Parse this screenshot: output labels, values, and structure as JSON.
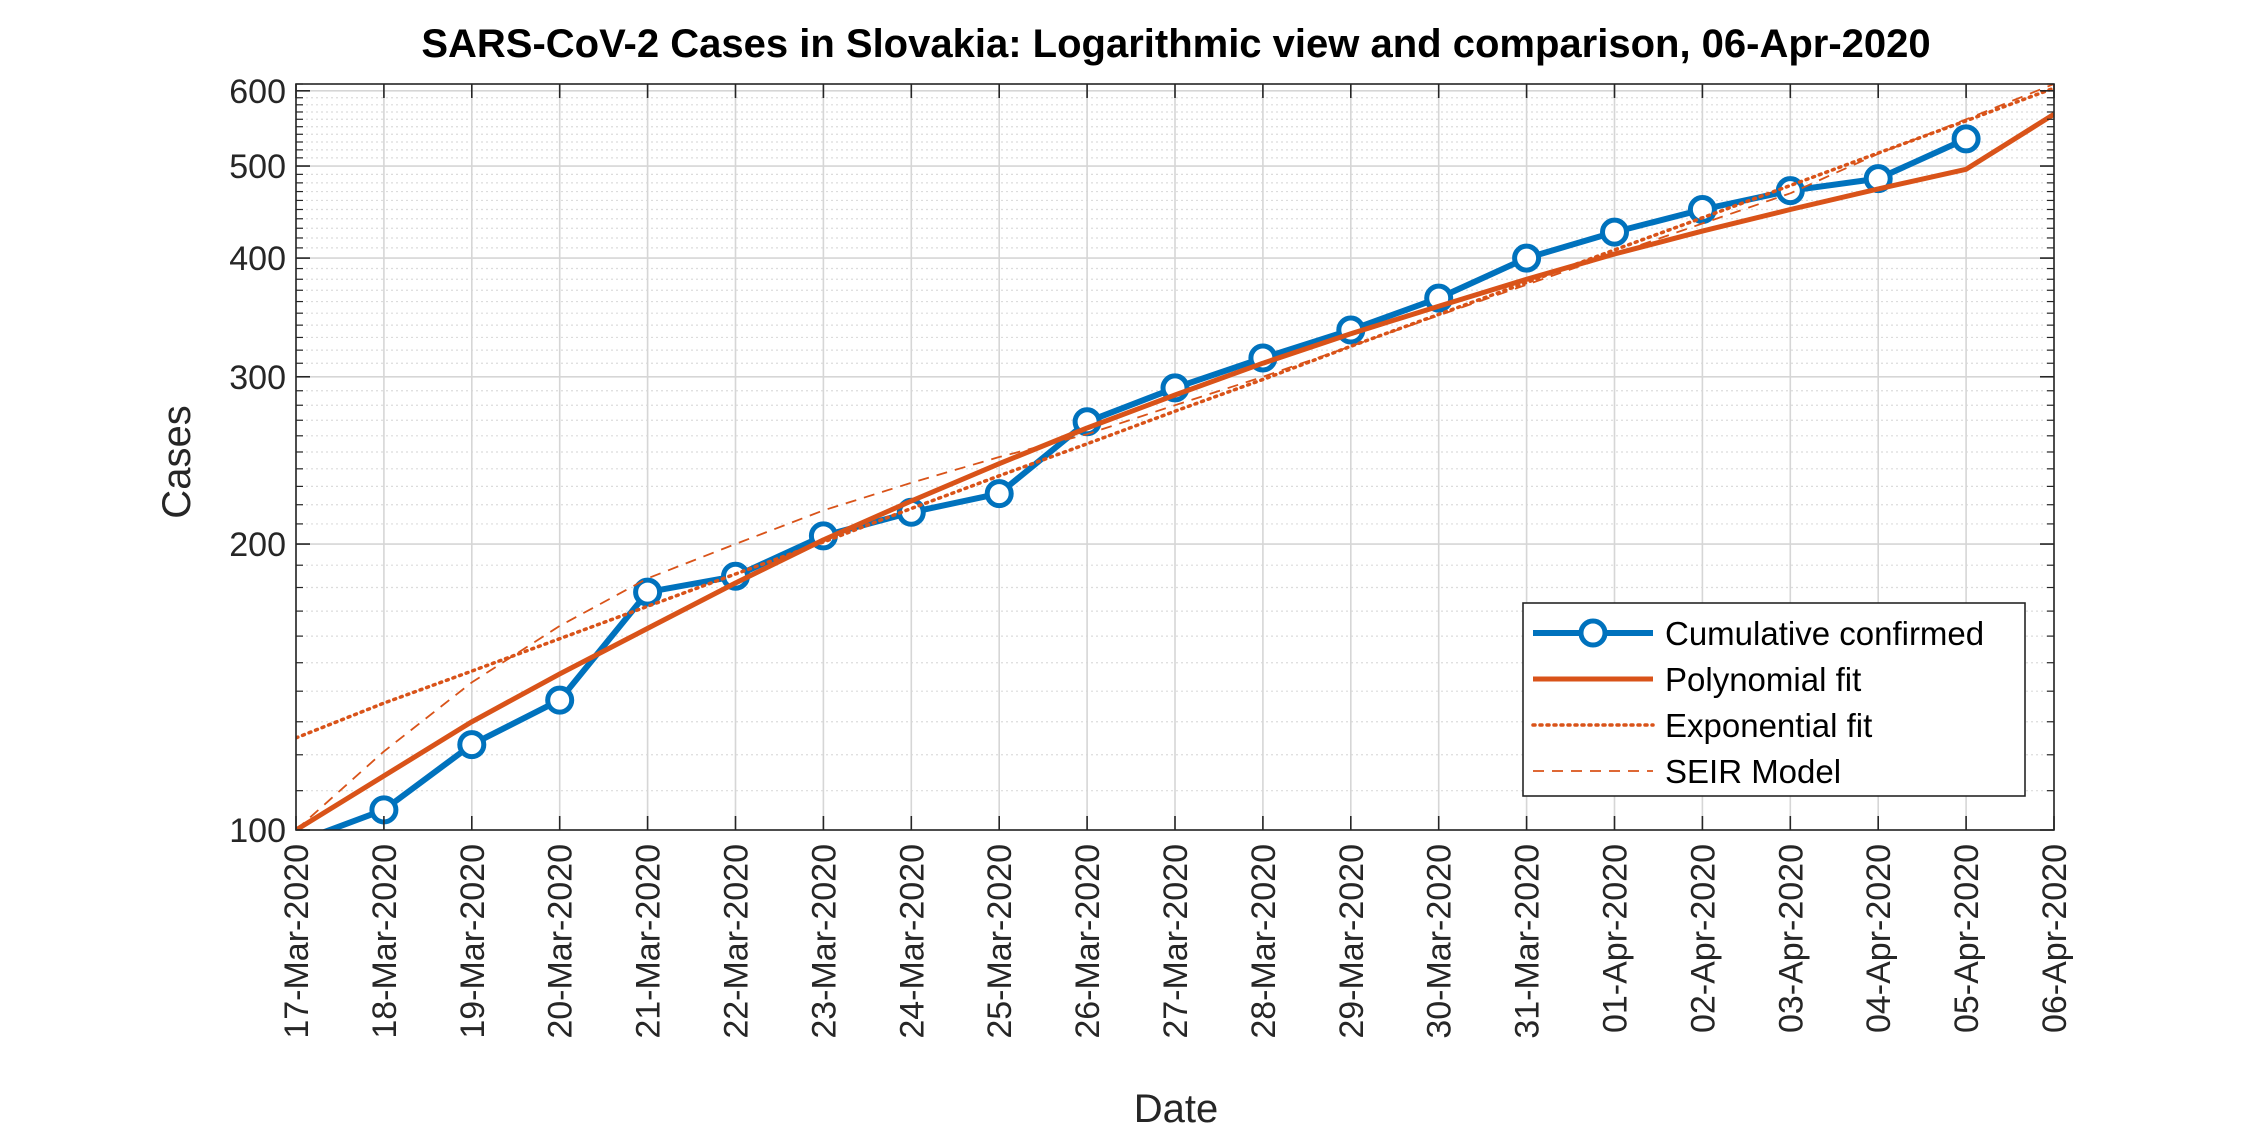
{
  "chart_data": {
    "type": "line",
    "title": "SARS-CoV-2 Cases in Slovakia: Logarithmic view and comparison, 06-Apr-2020",
    "xlabel": "Date",
    "ylabel": "Cases",
    "yscale": "log",
    "ylim": [
      100,
      610
    ],
    "yticks": [
      100,
      200,
      300,
      400,
      500,
      600
    ],
    "grid": true,
    "minor_grid": true,
    "legend_placement": "lower-right",
    "x_tick_labels": [
      "17-Mar-2020",
      "18-Mar-2020",
      "19-Mar-2020",
      "20-Mar-2020",
      "21-Mar-2020",
      "22-Mar-2020",
      "23-Mar-2020",
      "24-Mar-2020",
      "25-Mar-2020",
      "26-Mar-2020",
      "27-Mar-2020",
      "28-Mar-2020",
      "29-Mar-2020",
      "30-Mar-2020",
      "31-Mar-2020",
      "01-Apr-2020",
      "02-Apr-2020",
      "03-Apr-2020",
      "04-Apr-2020",
      "05-Apr-2020",
      "06-Apr-2020"
    ],
    "series": [
      {
        "name": "Cumulative confirmed",
        "style": "solid-marker",
        "color": "#0072BD",
        "x": [
          "17-Mar-2020",
          "18-Mar-2020",
          "19-Mar-2020",
          "20-Mar-2020",
          "21-Mar-2020",
          "22-Mar-2020",
          "23-Mar-2020",
          "24-Mar-2020",
          "25-Mar-2020",
          "26-Mar-2020",
          "27-Mar-2020",
          "28-Mar-2020",
          "29-Mar-2020",
          "30-Mar-2020",
          "31-Mar-2020",
          "01-Apr-2020",
          "02-Apr-2020",
          "03-Apr-2020",
          "04-Apr-2020",
          "05-Apr-2020"
        ],
        "values": [
          97,
          105,
          123,
          137,
          178,
          185,
          204,
          216,
          226,
          269,
          292,
          314,
          336,
          363,
          400,
          426,
          450,
          471,
          485,
          534
        ]
      },
      {
        "name": "Polynomial fit",
        "style": "solid",
        "color": "#D95319",
        "x": [
          "17-Mar-2020",
          "18-Mar-2020",
          "19-Mar-2020",
          "20-Mar-2020",
          "21-Mar-2020",
          "22-Mar-2020",
          "23-Mar-2020",
          "24-Mar-2020",
          "25-Mar-2020",
          "26-Mar-2020",
          "27-Mar-2020",
          "28-Mar-2020",
          "29-Mar-2020",
          "30-Mar-2020",
          "31-Mar-2020",
          "01-Apr-2020",
          "02-Apr-2020",
          "03-Apr-2020",
          "04-Apr-2020",
          "05-Apr-2020",
          "06-Apr-2020"
        ],
        "values": [
          100,
          114,
          130,
          146,
          163,
          182,
          202,
          222,
          243,
          265,
          287,
          310,
          333,
          356,
          380,
          404,
          427,
          450,
          473,
          496,
          567
        ]
      },
      {
        "name": "Exponential fit",
        "style": "dotted",
        "color": "#D95319",
        "x": [
          "17-Mar-2020",
          "18-Mar-2020",
          "19-Mar-2020",
          "20-Mar-2020",
          "21-Mar-2020",
          "22-Mar-2020",
          "23-Mar-2020",
          "24-Mar-2020",
          "25-Mar-2020",
          "26-Mar-2020",
          "27-Mar-2020",
          "28-Mar-2020",
          "29-Mar-2020",
          "30-Mar-2020",
          "31-Mar-2020",
          "01-Apr-2020",
          "02-Apr-2020",
          "03-Apr-2020",
          "04-Apr-2020",
          "05-Apr-2020",
          "06-Apr-2020"
        ],
        "values": [
          125,
          136,
          147,
          159,
          172,
          186,
          201,
          218,
          236,
          255,
          276,
          298,
          323,
          349,
          377,
          408,
          441,
          477,
          516,
          558,
          604
        ]
      },
      {
        "name": "SEIR Model",
        "style": "dashed",
        "color": "#D95319",
        "x": [
          "17-Mar-2020",
          "18-Mar-2020",
          "19-Mar-2020",
          "20-Mar-2020",
          "21-Mar-2020",
          "22-Mar-2020",
          "23-Mar-2020",
          "24-Mar-2020",
          "25-Mar-2020",
          "26-Mar-2020",
          "27-Mar-2020",
          "28-Mar-2020",
          "29-Mar-2020",
          "30-Mar-2020",
          "31-Mar-2020",
          "01-Apr-2020",
          "02-Apr-2020",
          "03-Apr-2020",
          "04-Apr-2020",
          "05-Apr-2020",
          "06-Apr-2020"
        ],
        "values": [
          100,
          121,
          143,
          164,
          184,
          200,
          217,
          232,
          247,
          261,
          280,
          300,
          323,
          348,
          375,
          404,
          435,
          468,
          515,
          560,
          610
        ]
      }
    ]
  }
}
